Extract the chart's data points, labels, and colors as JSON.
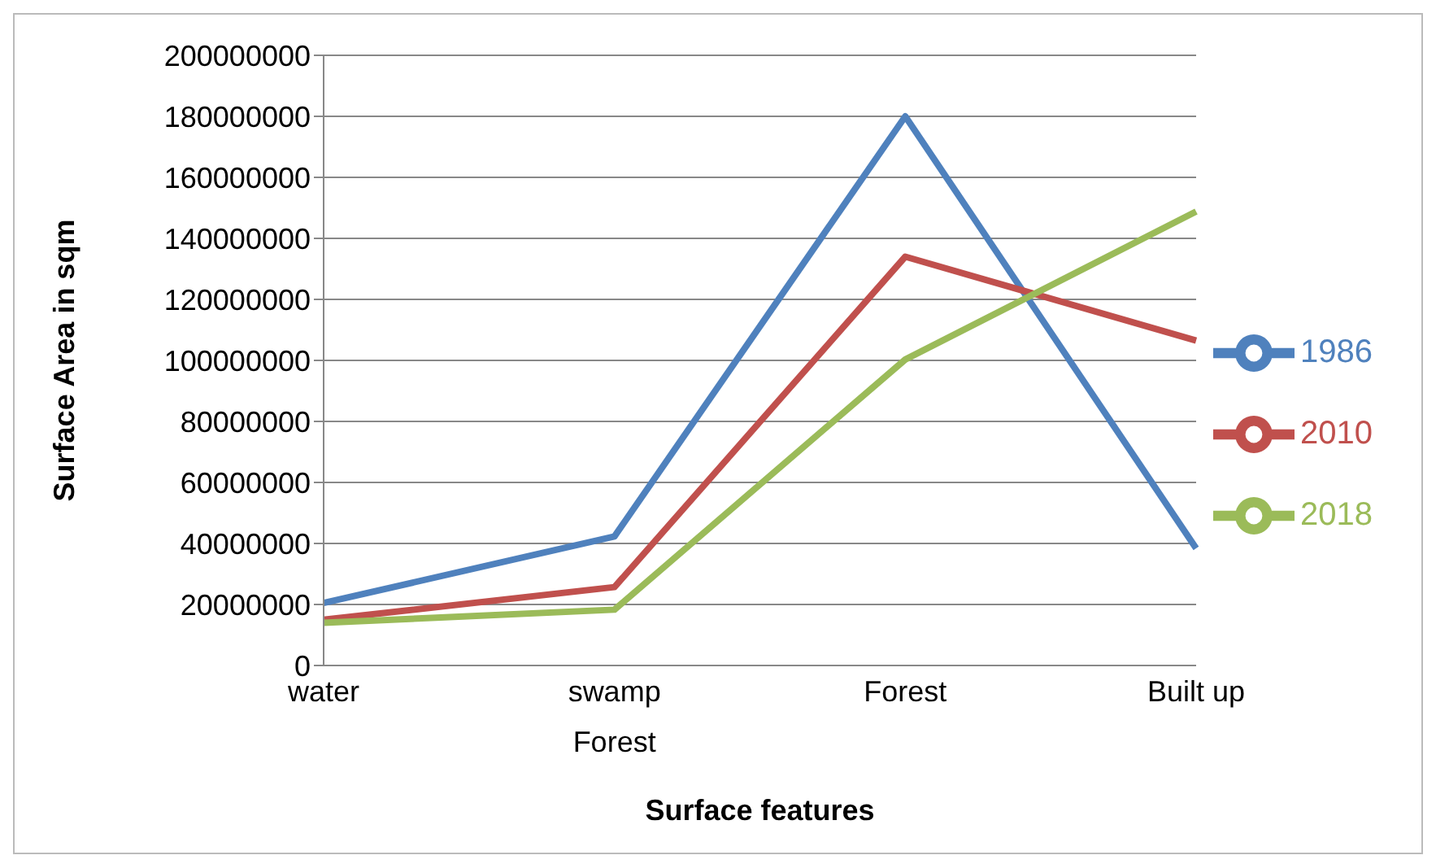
{
  "chart_data": {
    "type": "line",
    "xlabel": "Surface features",
    "ylabel": "Surface Area in sqm",
    "categories": [
      "water",
      "swamp Forest",
      "Forest",
      "Built up"
    ],
    "series": [
      {
        "name": "1986",
        "color": "#4f81bd",
        "values": [
          20500000,
          42300000,
          180000000,
          38400000
        ]
      },
      {
        "name": "2010",
        "color": "#c0504d",
        "values": [
          15000000,
          25700000,
          134000000,
          106500000
        ]
      },
      {
        "name": "2018",
        "color": "#9bbb59",
        "values": [
          14000000,
          18300000,
          100300000,
          148800000
        ]
      }
    ],
    "ylim": [
      0,
      200000000
    ],
    "yticks": [
      0,
      20000000,
      40000000,
      60000000,
      80000000,
      100000000,
      120000000,
      140000000,
      160000000,
      180000000,
      200000000
    ],
    "grid": "y",
    "legend": "right",
    "marker": "none",
    "line_style": "solid"
  }
}
